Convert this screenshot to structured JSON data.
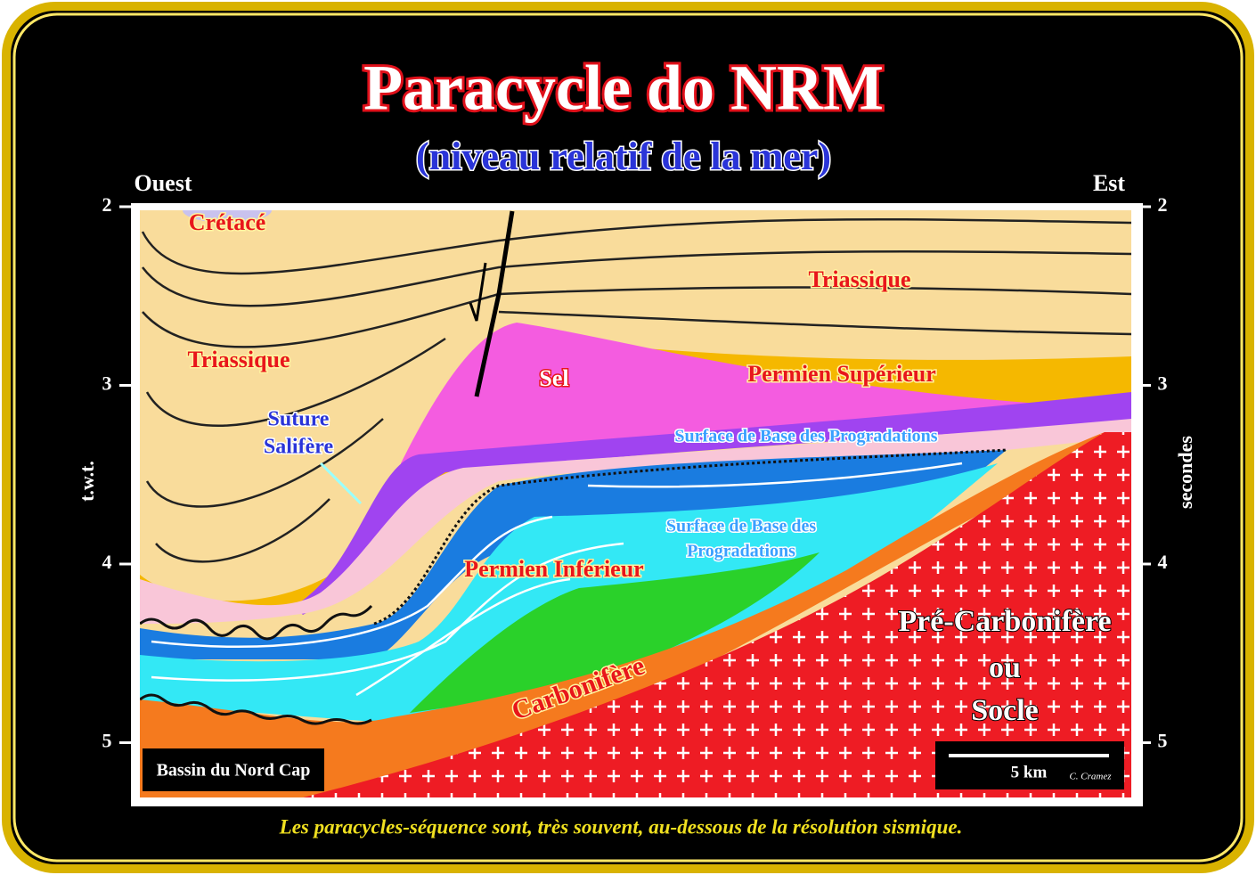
{
  "header": {
    "title": "Paracycle do NRM",
    "subtitle": "(niveau relatif de la mer)"
  },
  "orientation": {
    "west": "Ouest",
    "east": "Est"
  },
  "axis": {
    "left_label": "t.w.t.",
    "right_label": "secondes",
    "ticks": [
      2,
      3,
      4,
      5
    ]
  },
  "labels": {
    "cretace": "Crétacé",
    "triassique_east": "Triassique",
    "triassique_west": "Triassique",
    "sel": "Sel",
    "permien_superieur": "Permien Supérieur",
    "suture": [
      "Suture",
      "Salifère"
    ],
    "surface_upper": "Surface de Base des Progradations",
    "surface_lower": [
      "Surface de Base des",
      "Progradations"
    ],
    "permien_inferieur": "Permien Inférieur",
    "carbonifere": "Carbonifère",
    "pre_carbonifere": [
      "Pré-Carbonifère",
      "ou",
      "Socle"
    ]
  },
  "legend": {
    "basin": "Bassin du Nord Cap",
    "scale": "5 km",
    "author": "C. Cramez"
  },
  "footer": "Les paracycles-séquence sont, très souvent, au-dessous de la résolution sismique."
}
